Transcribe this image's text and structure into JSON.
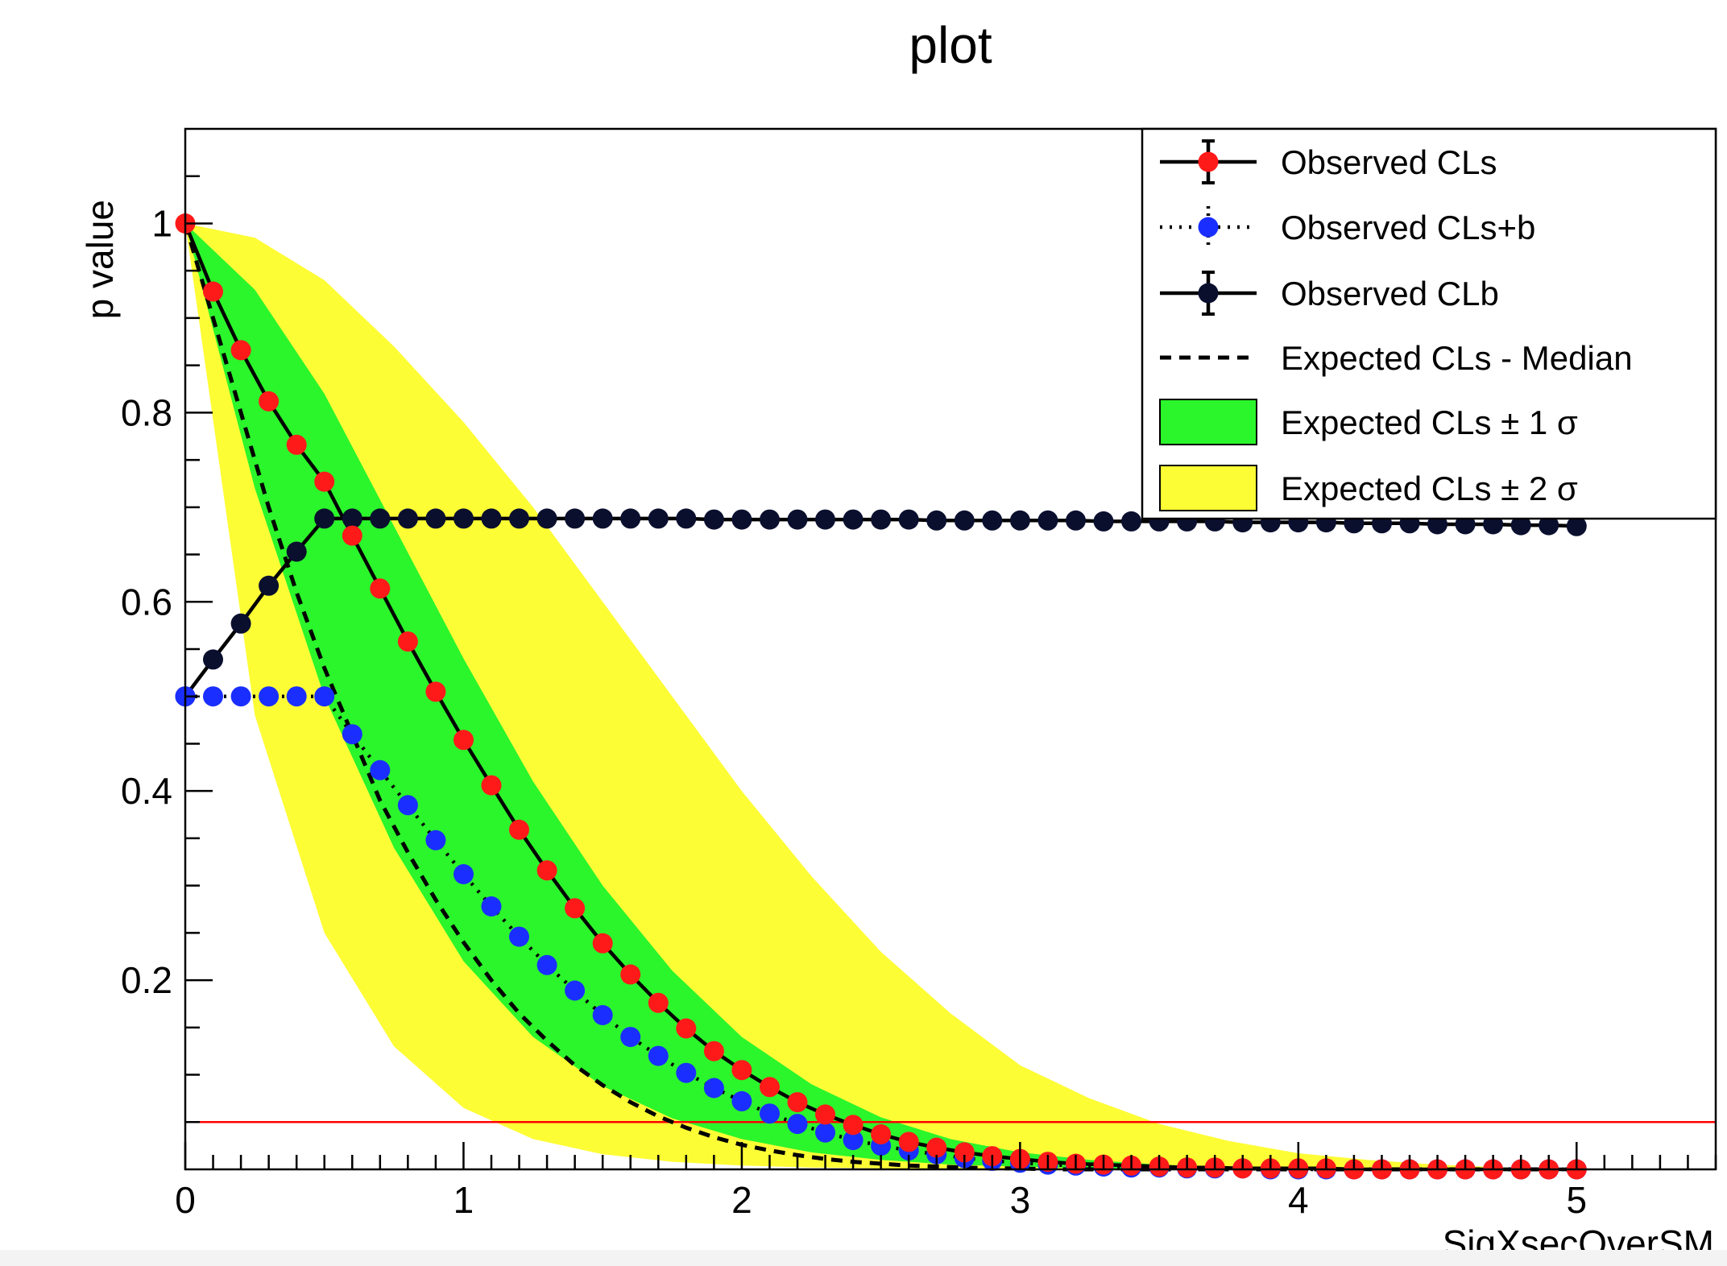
{
  "chart_data": {
    "type": "line",
    "title": "plot",
    "xlabel": "SigXsecOverSM",
    "ylabel": "p value",
    "xlim": [
      0,
      5.5
    ],
    "ylim": [
      0,
      1.1
    ],
    "x_ticks": [
      0,
      1,
      2,
      3,
      4,
      5
    ],
    "x_tick_labels": [
      "0",
      "1",
      "2",
      "3",
      "4",
      "5"
    ],
    "y_ticks": [
      0.2,
      0.4,
      0.6,
      0.8,
      1.0
    ],
    "y_tick_labels": [
      "0.2",
      "0.4",
      "0.6",
      "0.8",
      "1"
    ],
    "grid": false,
    "legend_position": "top-right",
    "colors": {
      "obs_cls": "#ff1a1a",
      "obs_clsb": "#1a2fff",
      "obs_clb": "#0a0f2e",
      "band_1sigma": "#2bf52b",
      "band_2sigma": "#fdfd35",
      "threshold": "#ff0000"
    },
    "legend": [
      {
        "label": "Observed CLs",
        "style": "line-marker-red"
      },
      {
        "label": "Observed CLs+b",
        "style": "dotted-marker-blue"
      },
      {
        "label": "Observed CLb",
        "style": "line-marker-navy"
      },
      {
        "label": "Expected CLs - Median",
        "style": "dashed"
      },
      {
        "label": "Expected CLs ± 1 σ",
        "style": "fill-green"
      },
      {
        "label": "Expected CLs ± 2 σ",
        "style": "fill-yellow"
      }
    ],
    "threshold": 0.05,
    "x": [
      0,
      0.1,
      0.2,
      0.3,
      0.4,
      0.5,
      0.6,
      0.7,
      0.8,
      0.9,
      1.0,
      1.1,
      1.2,
      1.3,
      1.4,
      1.5,
      1.6,
      1.7,
      1.8,
      1.9,
      2.0,
      2.1,
      2.2,
      2.3,
      2.4,
      2.5,
      2.6,
      2.7,
      2.8,
      2.9,
      3.0,
      3.1,
      3.2,
      3.3,
      3.4,
      3.5,
      3.6,
      3.7,
      3.8,
      3.9,
      4.0,
      4.1,
      4.2,
      4.3,
      4.4,
      4.5,
      4.6,
      4.7,
      4.8,
      4.9,
      5.0
    ],
    "series": [
      {
        "name": "Observed CLs",
        "values": [
          1.0,
          0.928,
          0.866,
          0.812,
          0.766,
          0.727,
          0.67,
          0.614,
          0.558,
          0.505,
          0.454,
          0.406,
          0.359,
          0.316,
          0.276,
          0.239,
          0.206,
          0.176,
          0.149,
          0.125,
          0.105,
          0.087,
          0.071,
          0.058,
          0.047,
          0.037,
          0.029,
          0.023,
          0.018,
          0.014,
          0.011,
          0.008,
          0.006,
          0.005,
          0.004,
          0.003,
          0.002,
          0.002,
          0.001,
          0.001,
          0.001,
          0.001,
          0.0,
          0.0,
          0.0,
          0.0,
          0.0,
          0.0,
          0.0,
          0.0,
          0.0
        ]
      },
      {
        "name": "Observed CLs+b",
        "values": [
          0.5,
          0.5,
          0.5,
          0.5,
          0.5,
          0.5,
          0.46,
          0.422,
          0.385,
          0.348,
          0.312,
          0.278,
          0.246,
          0.216,
          0.189,
          0.163,
          0.14,
          0.12,
          0.102,
          0.086,
          0.072,
          0.059,
          0.048,
          0.039,
          0.031,
          0.025,
          0.02,
          0.016,
          0.012,
          0.009,
          0.007,
          0.005,
          0.004,
          0.003,
          0.002,
          0.002,
          0.001,
          0.001,
          0.001,
          0.0,
          0.0,
          0.0,
          0.0,
          0.0,
          0.0,
          0.0,
          0.0,
          0.0,
          0.0,
          0.0,
          0.0
        ]
      },
      {
        "name": "Observed CLb",
        "values": [
          0.5,
          0.539,
          0.577,
          0.617,
          0.653,
          0.688,
          0.688,
          0.688,
          0.688,
          0.688,
          0.688,
          0.688,
          0.688,
          0.688,
          0.688,
          0.688,
          0.688,
          0.688,
          0.688,
          0.687,
          0.687,
          0.687,
          0.687,
          0.687,
          0.687,
          0.687,
          0.687,
          0.686,
          0.686,
          0.686,
          0.686,
          0.686,
          0.686,
          0.685,
          0.685,
          0.685,
          0.685,
          0.685,
          0.684,
          0.684,
          0.684,
          0.684,
          0.683,
          0.683,
          0.683,
          0.682,
          0.682,
          0.682,
          0.681,
          0.681,
          0.68
        ]
      },
      {
        "name": "Expected CLs - Median",
        "values": [
          1.0,
          0.9,
          0.8,
          0.7,
          0.61,
          0.53,
          0.46,
          0.39,
          0.335,
          0.285,
          0.24,
          0.2,
          0.165,
          0.136,
          0.11,
          0.089,
          0.071,
          0.056,
          0.044,
          0.034,
          0.026,
          0.02,
          0.015,
          0.011,
          0.008,
          0.006,
          0.004,
          0.003,
          0.002,
          0.001,
          0.001,
          0.0,
          0.0,
          0.0,
          0.0,
          0.0,
          0.0,
          0.0,
          0.0,
          0.0,
          0.0,
          0.0,
          0.0,
          0.0,
          0.0,
          0.0,
          0.0,
          0.0,
          0.0,
          0.0,
          0.0
        ]
      }
    ],
    "bands": {
      "x": [
        0,
        0.25,
        0.5,
        0.75,
        1.0,
        1.25,
        1.5,
        1.75,
        2.0,
        2.25,
        2.5,
        2.75,
        3.0,
        3.25,
        3.5,
        3.75,
        4.0,
        4.25,
        4.5,
        4.75,
        5.0
      ],
      "sigma1_lower": [
        1.0,
        0.72,
        0.5,
        0.34,
        0.22,
        0.14,
        0.088,
        0.054,
        0.032,
        0.018,
        0.01,
        0.005,
        0.003,
        0.001,
        0.0,
        0.0,
        0.0,
        0.0,
        0.0,
        0.0,
        0.0
      ],
      "sigma1_upper": [
        1.0,
        0.93,
        0.82,
        0.68,
        0.54,
        0.41,
        0.3,
        0.21,
        0.14,
        0.09,
        0.055,
        0.032,
        0.018,
        0.01,
        0.005,
        0.002,
        0.001,
        0.0,
        0.0,
        0.0,
        0.0
      ],
      "sigma2_lower": [
        1.0,
        0.48,
        0.25,
        0.13,
        0.065,
        0.032,
        0.016,
        0.008,
        0.004,
        0.002,
        0.001,
        0.0,
        0.0,
        0.0,
        0.0,
        0.0,
        0.0,
        0.0,
        0.0,
        0.0,
        0.0
      ],
      "sigma2_upper": [
        1.0,
        0.985,
        0.94,
        0.87,
        0.79,
        0.7,
        0.6,
        0.5,
        0.4,
        0.31,
        0.23,
        0.165,
        0.11,
        0.075,
        0.048,
        0.03,
        0.017,
        0.01,
        0.005,
        0.002,
        0.001
      ]
    }
  }
}
